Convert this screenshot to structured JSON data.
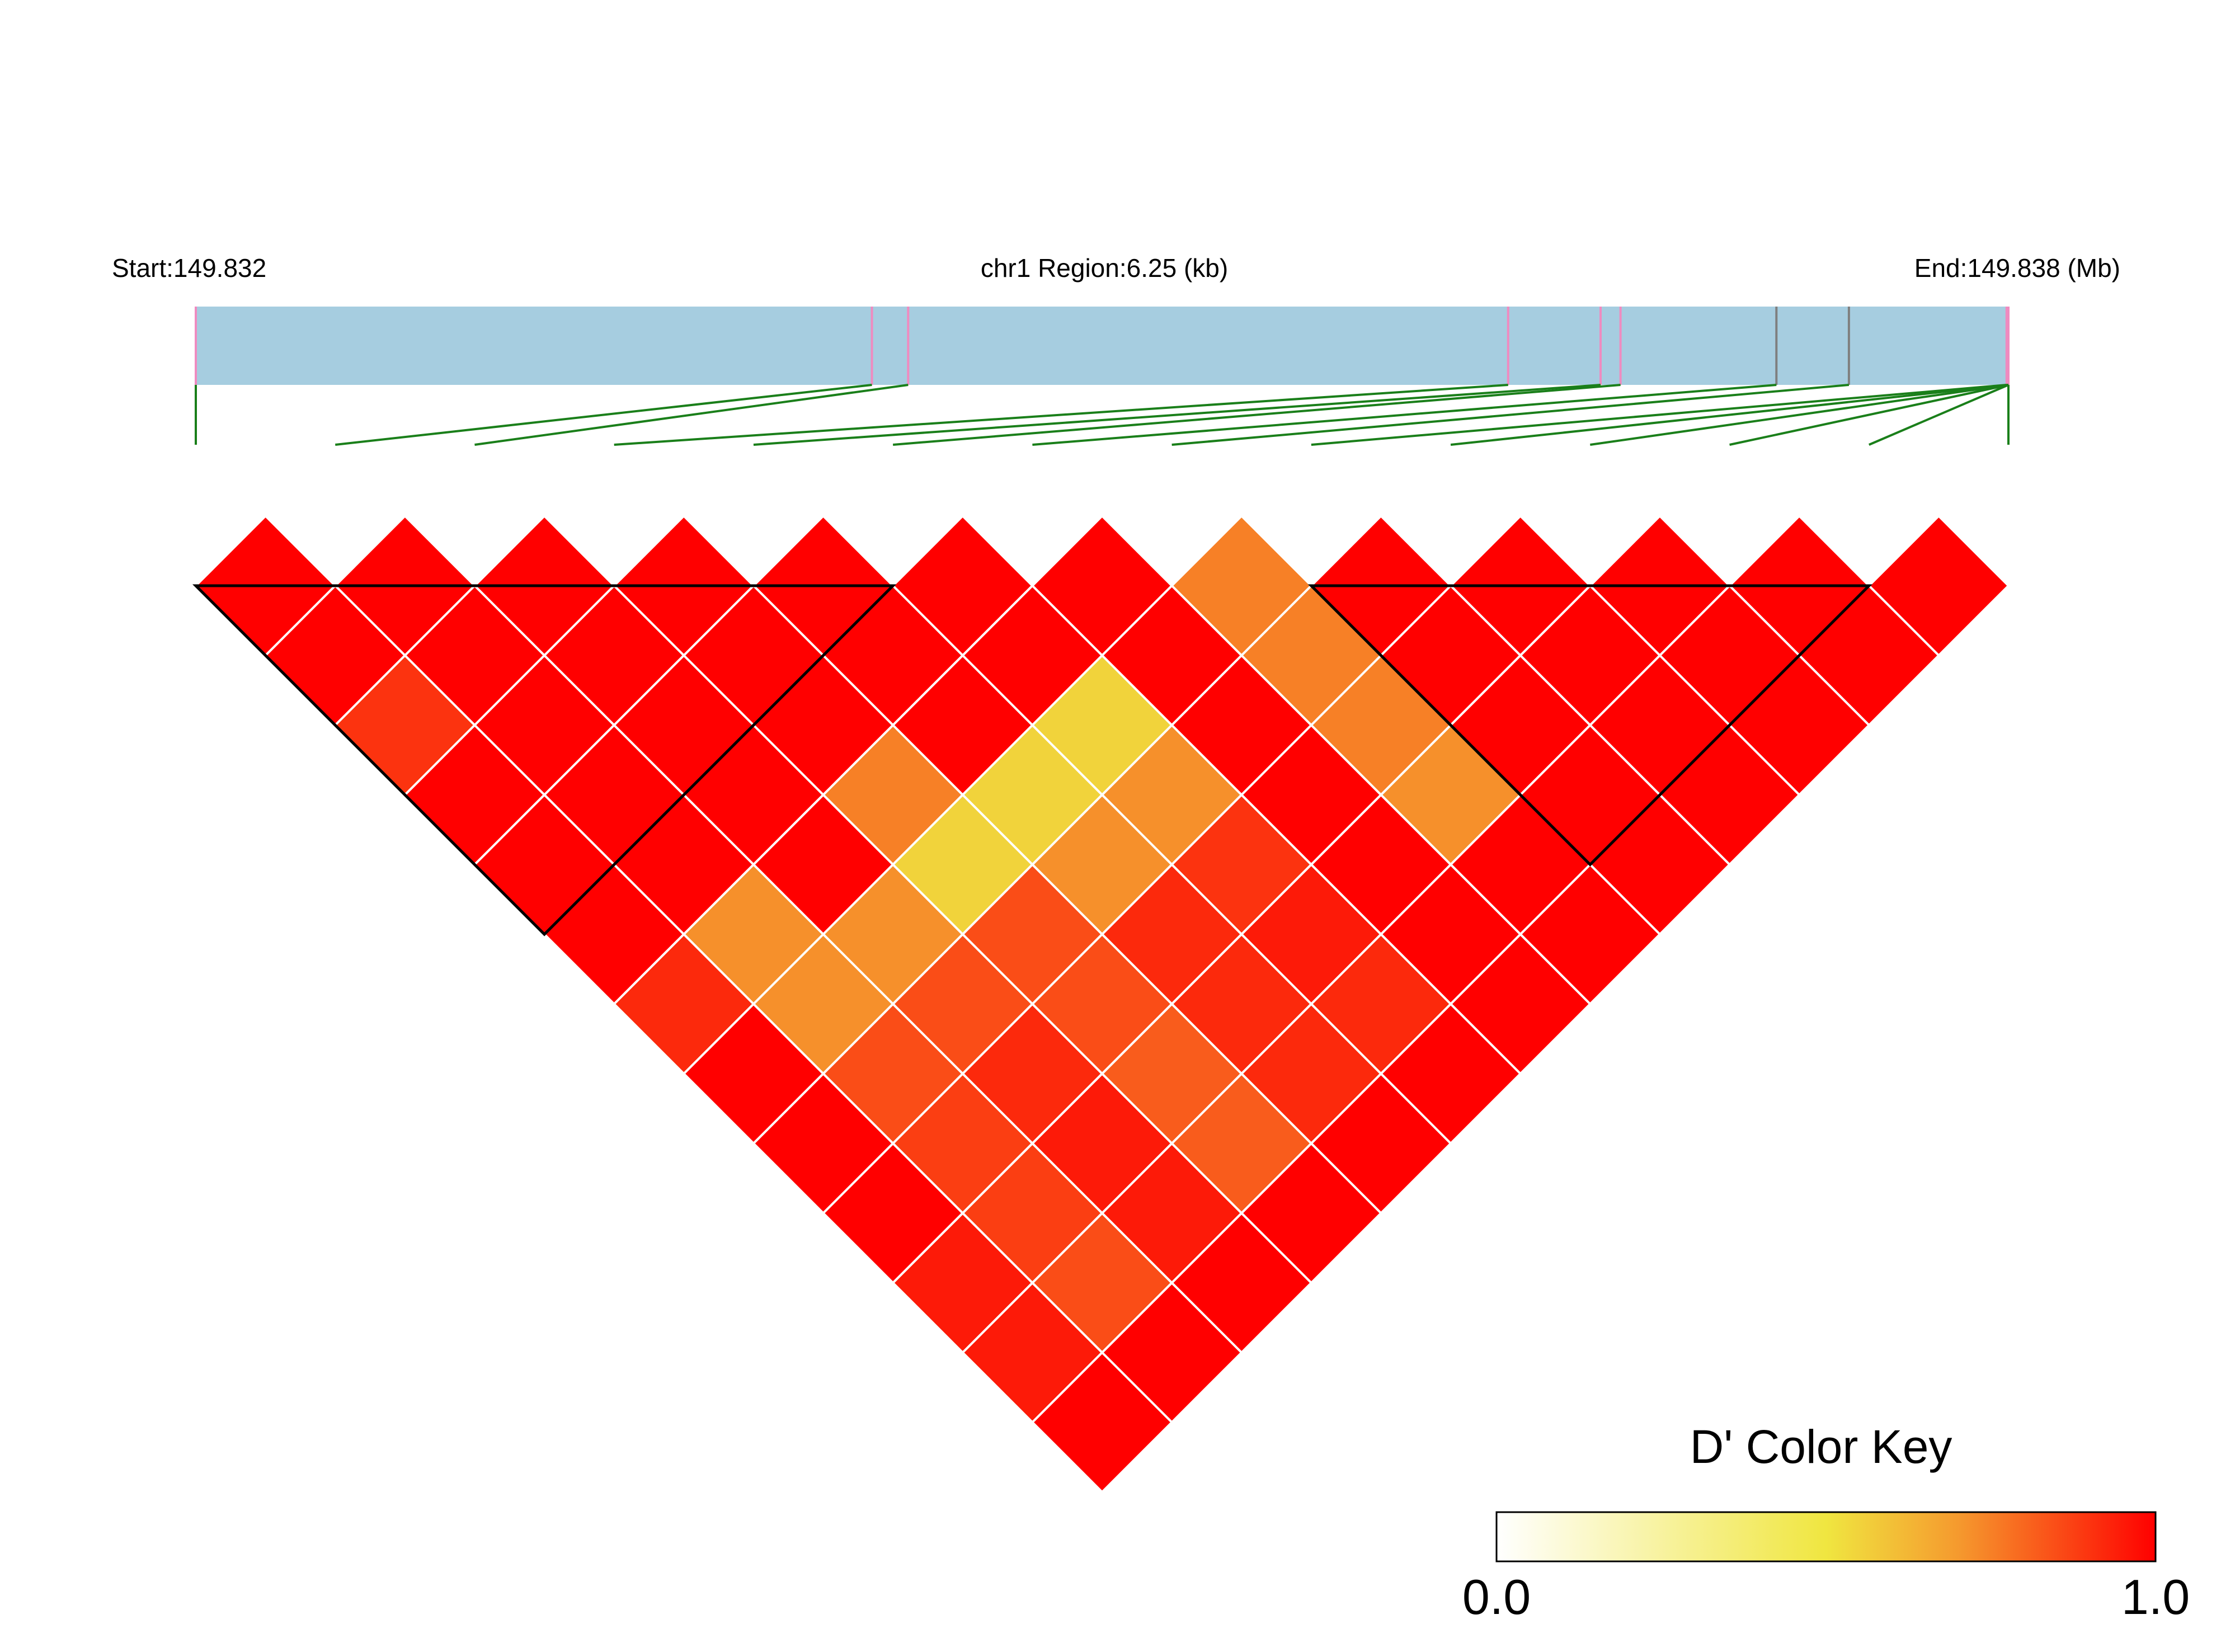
{
  "header": {
    "start_label": "Start:149.832",
    "region_label": "chr1 Region:6.25 (kb)",
    "end_label": "End:149.838 (Mb)"
  },
  "chart_data": {
    "type": "heatmap",
    "kind": "LD block triangle",
    "chromosome": "chr1",
    "start_mb": 149.832,
    "end_mb": 149.838,
    "region_kb": 6.25,
    "n_snps": 14,
    "snp_fraction_positions": [
      0.0,
      0.373,
      0.393,
      0.724,
      0.775,
      0.786,
      0.872,
      0.912,
      0.999,
      1.0,
      1.0,
      1.0,
      1.0,
      1.0
    ],
    "snp_mark_colors": [
      "#ef8bc0",
      "#ef8bc0",
      "#ef8bc0",
      "#ef8bc0",
      "#ef8bc0",
      "#ef8bc0",
      "#7f7f7f",
      "#7f7f7f",
      "#ef8bc0",
      "#ef8bc0",
      "#ef8bc0",
      "#ef8bc0",
      "#ef8bc0",
      "#ef8bc0"
    ],
    "dprime_matrix_rows_by_distance": [
      [
        1.0,
        1.0,
        1.0,
        1.0,
        1.0,
        1.0,
        1.0,
        0.75,
        1.0,
        1.0,
        1.0,
        1.0,
        1.0
      ],
      [
        1.0,
        1.0,
        1.0,
        1.0,
        1.0,
        1.0,
        1.0,
        0.75,
        1.0,
        1.0,
        1.0,
        1.0
      ],
      [
        0.9,
        1.0,
        1.0,
        1.0,
        1.0,
        0.55,
        1.0,
        0.75,
        1.0,
        1.0,
        1.0
      ],
      [
        1.0,
        1.0,
        1.0,
        0.75,
        0.55,
        0.72,
        1.0,
        0.72,
        1.0,
        1.0
      ],
      [
        1.0,
        1.0,
        1.0,
        0.55,
        0.72,
        0.9,
        1.0,
        1.0,
        1.0
      ],
      [
        1.0,
        0.72,
        0.72,
        0.85,
        0.92,
        0.95,
        1.0,
        1.0
      ],
      [
        0.92,
        0.72,
        0.85,
        0.85,
        0.92,
        0.92,
        1.0
      ],
      [
        1.0,
        0.85,
        0.92,
        0.82,
        0.92,
        1.0
      ],
      [
        1.0,
        0.88,
        0.95,
        0.82,
        1.0
      ],
      [
        1.0,
        0.88,
        0.95,
        1.0
      ],
      [
        0.95,
        0.85,
        1.0
      ],
      [
        0.95,
        1.0
      ],
      [
        1.0
      ]
    ],
    "blocks": [
      {
        "first": 0,
        "last": 5
      },
      {
        "first": 8,
        "last": 12
      }
    ],
    "color_key": {
      "title": "D' Color Key",
      "min_label": "0.0",
      "max_label": "1.0",
      "min": 0.0,
      "max": 1.0,
      "colors": [
        "#ffffff",
        "#f0e640",
        "#f59a2e",
        "#ff0000"
      ]
    },
    "colors": {
      "track_fill": "#a6cde0",
      "connector": "#1a7f1a",
      "cell_border": "#ffffff",
      "block_outline": "#000000"
    }
  }
}
